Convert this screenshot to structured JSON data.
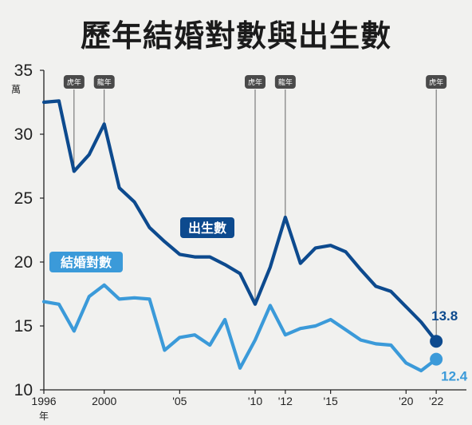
{
  "title": "歷年結婚對數與出生數",
  "colors": {
    "births": "#0d4a8e",
    "marriages": "#3b9ad9",
    "background": "#f1f1ef",
    "marker_bg": "#4a4a4a"
  },
  "chart_data": {
    "type": "line",
    "title": "歷年結婚對數與出生數",
    "y_unit": "萬",
    "x_unit": "年",
    "ylim": [
      10,
      35
    ],
    "yticks": [
      10,
      15,
      20,
      25,
      30,
      35
    ],
    "xlim": [
      1996,
      2022
    ],
    "xticks": [
      {
        "x": 1996,
        "label": "1996"
      },
      {
        "x": 2000,
        "label": "2000"
      },
      {
        "x": 2005,
        "label": "'05"
      },
      {
        "x": 2010,
        "label": "'10"
      },
      {
        "x": 2012,
        "label": "'12"
      },
      {
        "x": 2015,
        "label": "'15"
      },
      {
        "x": 2020,
        "label": "'20"
      },
      {
        "x": 2022,
        "label": "'22"
      }
    ],
    "x": [
      1996,
      1997,
      1998,
      1999,
      2000,
      2001,
      2002,
      2003,
      2004,
      2005,
      2006,
      2007,
      2008,
      2009,
      2010,
      2011,
      2012,
      2013,
      2014,
      2015,
      2016,
      2017,
      2018,
      2019,
      2020,
      2021,
      2022
    ],
    "series": [
      {
        "name": "出生數",
        "values": [
          32.5,
          32.6,
          27.1,
          28.4,
          30.8,
          25.8,
          24.7,
          22.7,
          21.6,
          20.6,
          20.4,
          20.4,
          19.8,
          19.1,
          16.7,
          19.6,
          23.5,
          19.9,
          21.1,
          21.3,
          20.8,
          19.4,
          18.1,
          17.7,
          16.5,
          15.3,
          13.8
        ],
        "end_label": "13.8"
      },
      {
        "name": "結婚對數",
        "values": [
          16.9,
          16.7,
          14.6,
          17.3,
          18.2,
          17.1,
          17.2,
          17.1,
          13.1,
          14.1,
          14.3,
          13.5,
          15.5,
          11.7,
          13.9,
          16.6,
          14.3,
          14.8,
          15.0,
          15.5,
          14.7,
          13.9,
          13.6,
          13.5,
          12.1,
          11.5,
          12.4
        ],
        "end_label": "12.4"
      }
    ],
    "annotations": [
      {
        "x": 1998,
        "label": "虎年"
      },
      {
        "x": 2000,
        "label": "龍年"
      },
      {
        "x": 2010,
        "label": "虎年"
      },
      {
        "x": 2012,
        "label": "龍年"
      },
      {
        "x": 2022,
        "label": "虎年"
      }
    ],
    "grid": false,
    "legend": "inline"
  }
}
